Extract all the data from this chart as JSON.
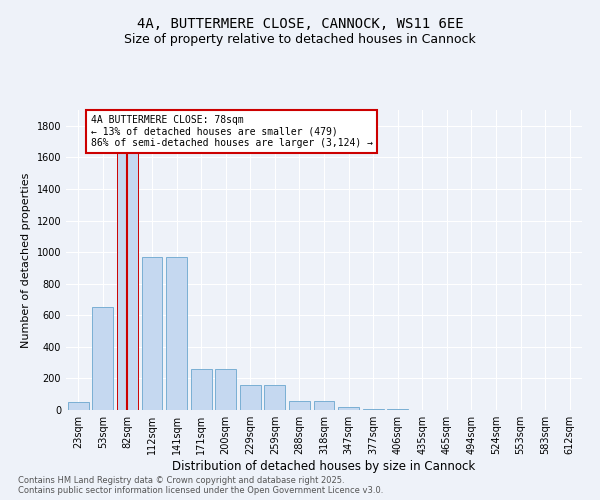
{
  "title": "4A, BUTTERMERE CLOSE, CANNOCK, WS11 6EE",
  "subtitle": "Size of property relative to detached houses in Cannock",
  "xlabel": "Distribution of detached houses by size in Cannock",
  "ylabel": "Number of detached properties",
  "categories": [
    "23sqm",
    "53sqm",
    "82sqm",
    "112sqm",
    "141sqm",
    "171sqm",
    "200sqm",
    "229sqm",
    "259sqm",
    "288sqm",
    "318sqm",
    "347sqm",
    "377sqm",
    "406sqm",
    "435sqm",
    "465sqm",
    "494sqm",
    "524sqm",
    "553sqm",
    "583sqm",
    "612sqm"
  ],
  "values": [
    50,
    650,
    1650,
    970,
    970,
    260,
    260,
    160,
    160,
    55,
    55,
    20,
    8,
    8,
    2,
    1,
    1,
    0,
    0,
    0,
    0
  ],
  "bar_color": "#c5d8f0",
  "bar_edge_color": "#7aafd4",
  "highlight_bar_index": 2,
  "highlight_edge_color": "#cc0000",
  "annotation_line1": "4A BUTTERMERE CLOSE: 78sqm",
  "annotation_line2": "← 13% of detached houses are smaller (479)",
  "annotation_line3": "86% of semi-detached houses are larger (3,124) →",
  "annotation_box_facecolor": "#ffffff",
  "annotation_border_color": "#cc0000",
  "ylim": [
    0,
    1900
  ],
  "yticks": [
    0,
    200,
    400,
    600,
    800,
    1000,
    1200,
    1400,
    1600,
    1800
  ],
  "background_color": "#eef2f9",
  "grid_color": "#ffffff",
  "footer_text": "Contains HM Land Registry data © Crown copyright and database right 2025.\nContains public sector information licensed under the Open Government Licence v3.0.",
  "title_fontsize": 10,
  "subtitle_fontsize": 9,
  "xlabel_fontsize": 8.5,
  "ylabel_fontsize": 8,
  "tick_fontsize": 7,
  "annotation_fontsize": 7,
  "footer_fontsize": 6
}
